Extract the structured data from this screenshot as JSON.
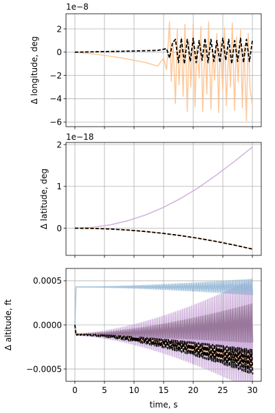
{
  "figure": {
    "background": "#ffffff"
  },
  "chart_data": [
    {
      "type": "line",
      "title": "",
      "xlabel": "",
      "ylabel": "Δ longitude, deg",
      "offset_text": "1e−8",
      "scale_exponent": -8,
      "xlim": [
        -1.5,
        31.5
      ],
      "ylim": [
        -6.4e-08,
        3.3e-08
      ],
      "xticks": [
        0,
        5,
        10,
        15,
        20,
        25,
        30
      ],
      "yticks": [
        -6e-08,
        -4e-08,
        -2e-08,
        0,
        2e-08
      ],
      "ytick_labels": [
        "−6",
        "−4",
        "−2",
        "0",
        "2"
      ],
      "show_xtick_labels": false,
      "grid": true,
      "legend": "none",
      "series": [
        {
          "color": "#ffbe86",
          "style": "solid",
          "x": [
            0,
            4,
            8,
            10,
            12,
            14,
            15,
            15.5,
            16,
            16.3,
            16.6,
            17,
            17.3,
            17.6,
            18,
            18.3,
            18.6,
            19,
            19.3,
            19.6,
            20,
            20.3,
            20.6,
            21,
            21.3,
            21.6,
            22,
            22.3,
            22.6,
            23,
            23.3,
            23.6,
            24,
            24.3,
            24.6,
            25,
            25.3,
            25.6,
            26,
            26.3,
            26.6,
            27,
            27.3,
            27.6,
            28,
            28.3,
            28.6,
            29,
            29.3,
            29.6,
            30
          ],
          "y": [
            0,
            -2e-09,
            -5e-09,
            -7e-09,
            -9e-09,
            -1.2e-08,
            -5e-09,
            -1.5e-08,
            2.6e-08,
            -2.5e-08,
            8e-09,
            -4.4e-08,
            2e-08,
            -2.8e-08,
            1.3e-08,
            -3.8e-08,
            2.4e-08,
            -5.1e-08,
            1e-08,
            -3e-08,
            2.5e-08,
            -4.7e-08,
            5e-09,
            -2.2e-08,
            2.2e-08,
            -5.1e-08,
            1.1e-08,
            -3.6e-08,
            2.6e-08,
            -4.9e-08,
            3e-09,
            -2.4e-08,
            1.6e-08,
            -5.2e-08,
            9e-09,
            -3.3e-08,
            2.1e-08,
            -4.6e-08,
            4e-09,
            -3e-08,
            2.5e-08,
            -5e-08,
            1.3e-08,
            -2.6e-08,
            1.9e-08,
            -4.8e-08,
            6e-09,
            -5.9e-08,
            1.6e-08,
            -3.1e-08,
            -4.5e-08
          ]
        },
        {
          "color": "#000000",
          "style": "dashed",
          "x": [
            0,
            5,
            10,
            14,
            15.5,
            16,
            16.5,
            17,
            17.5,
            18,
            18.5,
            19,
            19.5,
            20,
            20.5,
            21,
            21.5,
            22,
            22.5,
            23,
            23.5,
            24,
            24.5,
            25,
            25.5,
            26,
            26.5,
            27,
            27.5,
            28,
            28.5,
            29,
            29.5,
            30
          ],
          "y": [
            0,
            5e-10,
            1e-09,
            1.5e-09,
            3e-09,
            -5e-09,
            8e-09,
            1.1e-08,
            -9e-09,
            1.2e-08,
            -1e-08,
            1.1e-08,
            -8e-09,
            1.2e-08,
            -9e-09,
            1e-08,
            -7e-09,
            1.2e-08,
            -9e-09,
            1.1e-08,
            -8e-09,
            1e-08,
            -9e-09,
            1.2e-08,
            -7e-09,
            1.1e-08,
            -1e-08,
            1e-08,
            -8e-09,
            1.2e-08,
            -9e-09,
            1.1e-08,
            -8e-09,
            1e-08
          ]
        }
      ]
    },
    {
      "type": "line",
      "title": "",
      "xlabel": "",
      "ylabel": "Δ latitude, deg",
      "offset_text": "1e−18",
      "scale_exponent": -18,
      "xlim": [
        -1.5,
        31.5
      ],
      "ylim": [
        -6.5e-19,
        2.05e-18
      ],
      "xticks": [
        0,
        5,
        10,
        15,
        20,
        25,
        30
      ],
      "yticks": [
        0,
        1e-18,
        2e-18
      ],
      "ytick_labels": [
        "0",
        "1",
        "2"
      ],
      "show_xtick_labels": false,
      "grid": true,
      "legend": "none",
      "series": [
        {
          "color": "#c7a3d6",
          "style": "solid",
          "x": [
            0,
            3,
            6,
            9,
            12,
            15,
            18,
            21,
            24,
            27,
            30
          ],
          "y": [
            0,
            2e-20,
            8e-20,
            1.8e-19,
            3.2e-19,
            5e-19,
            7.2e-19,
            9.8e-19,
            1.28e-18,
            1.6e-18,
            1.94e-18
          ]
        },
        {
          "color": "#ffbe86",
          "style": "solid",
          "x": [
            0,
            3,
            6,
            9,
            12,
            15,
            18,
            21,
            24,
            27,
            30
          ],
          "y": [
            0,
            -5e-21,
            -2e-20,
            -4.5e-20,
            -8e-20,
            -1.25e-19,
            -1.8e-19,
            -2.45e-19,
            -3.2e-19,
            -4.05e-19,
            -5e-19
          ]
        },
        {
          "color": "#000000",
          "style": "dashed",
          "x": [
            0,
            3,
            6,
            9,
            12,
            15,
            18,
            21,
            24,
            27,
            30
          ],
          "y": [
            0,
            -5e-21,
            -2e-20,
            -4.5e-20,
            -8e-20,
            -1.25e-19,
            -1.8e-19,
            -2.45e-19,
            -3.2e-19,
            -4.05e-19,
            -5e-19
          ]
        }
      ]
    },
    {
      "type": "line",
      "title": "",
      "xlabel": "time, s",
      "ylabel": "Δ altitude, ft",
      "offset_text": "",
      "xlim": [
        -1.5,
        31.5
      ],
      "ylim": [
        -0.00064,
        0.00064
      ],
      "xticks": [
        0,
        5,
        10,
        15,
        20,
        25,
        30
      ],
      "xtick_labels": [
        "0",
        "5",
        "10",
        "15",
        "20",
        "25",
        "30"
      ],
      "yticks": [
        -0.0005,
        0,
        0.0005
      ],
      "ytick_labels": [
        "−0.0005",
        "0.0000",
        "0.0005"
      ],
      "show_xtick_labels": true,
      "grid": true,
      "legend": "none",
      "series": [
        {
          "color": "#c7a3d6",
          "style": "oscillating",
          "x0": 0,
          "x1": 30,
          "step_time": 0.2,
          "base": -0.00011,
          "base_end": -0.00011,
          "amp_start": 1e-05,
          "amp_end": 0.00063,
          "period": 0.3
        },
        {
          "color": "#8f6f8f",
          "style": "oscillating",
          "x0": 0,
          "x1": 30,
          "step_time": 0.2,
          "base": -0.00011,
          "base_end": 2e-05,
          "amp_start": 1e-05,
          "amp_end": 0.00022,
          "period": 0.3
        },
        {
          "color": "#8fb5d5",
          "style": "oscillating",
          "x0": 0,
          "x1": 30,
          "step_time": 0.2,
          "base": 0.00043,
          "base_end": 0.00043,
          "amp_start": 0.0,
          "amp_end": 9e-05,
          "period": 0.3,
          "start_level": 0
        },
        {
          "color": "#ffbe86",
          "style": "oscillating",
          "x0": 0,
          "x1": 30,
          "step_time": 0.2,
          "base": -0.00011,
          "base_end": -0.0004,
          "amp_start": 0.0,
          "amp_end": 9e-05,
          "period": 0.3
        },
        {
          "color": "#000000",
          "style": "dashed-oscillating",
          "x0": 0,
          "x1": 30,
          "step_time": 0.2,
          "base": -0.00011,
          "base_end": -0.00042,
          "amp_start": 5e-06,
          "amp_end": 0.00014,
          "period": 0.3
        }
      ]
    }
  ]
}
